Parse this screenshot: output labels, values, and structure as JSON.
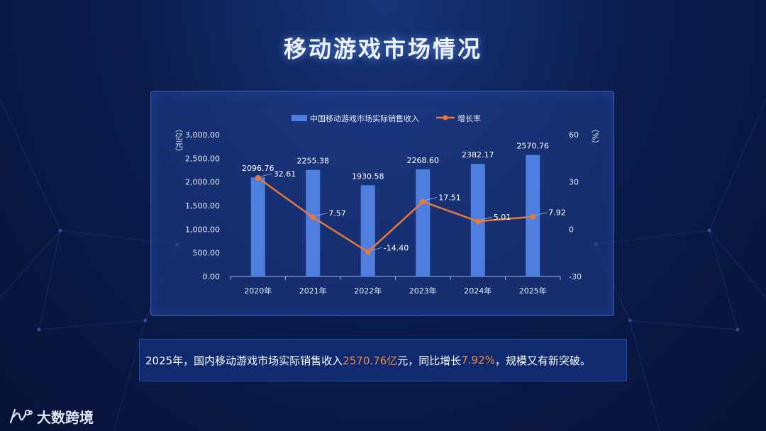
{
  "title": "移动游戏市场情况",
  "colors": {
    "bar": "#4e7fe0",
    "line": "#e97a35"
  },
  "chart_data": {
    "type": "bar",
    "categories": [
      "2020年",
      "2021年",
      "2022年",
      "2023年",
      "2024年",
      "2025年"
    ],
    "series": [
      {
        "name": "中国移动游戏市场实际销售收入",
        "type": "bar",
        "axis": "left",
        "values": [
          2096.76,
          2255.38,
          1930.58,
          2268.6,
          2382.17,
          2570.76
        ],
        "labels": [
          "2096.76",
          "2255.38",
          "1930.58",
          "2268.60",
          "2382.17",
          "2570.76"
        ]
      },
      {
        "name": "增长率",
        "type": "line",
        "axis": "right",
        "values": [
          32.61,
          7.57,
          -14.4,
          17.51,
          5.01,
          7.92
        ],
        "labels": [
          "32.61",
          "7.57",
          "-14.40",
          "17.51",
          "5.01",
          "7.92"
        ]
      }
    ],
    "y_left": {
      "label": "（亿元）",
      "ylim": [
        0,
        3000
      ],
      "ticks": [
        0,
        500,
        1000,
        1500,
        2000,
        2500,
        3000
      ],
      "tick_labels": [
        "0.00",
        "500.00",
        "1,000.00",
        "1,500.00",
        "2,000.00",
        "2,500.00",
        "3,000.00"
      ]
    },
    "y_right": {
      "label": "（%）",
      "ylim": [
        -30,
        60
      ],
      "ticks": [
        -30,
        0,
        30,
        60
      ],
      "tick_labels": [
        "-30",
        "0",
        "30",
        "60"
      ]
    },
    "legend_position": "top-center",
    "grid": false
  },
  "summary": {
    "part1": "2025年，国内移动游戏市场实际销售收入",
    "hl1": "2570.76亿",
    "part2": "元，同比增长",
    "hl2": "7.92%",
    "part3": "，规模又有新突破。"
  },
  "brand": {
    "name": "大数跨境"
  }
}
